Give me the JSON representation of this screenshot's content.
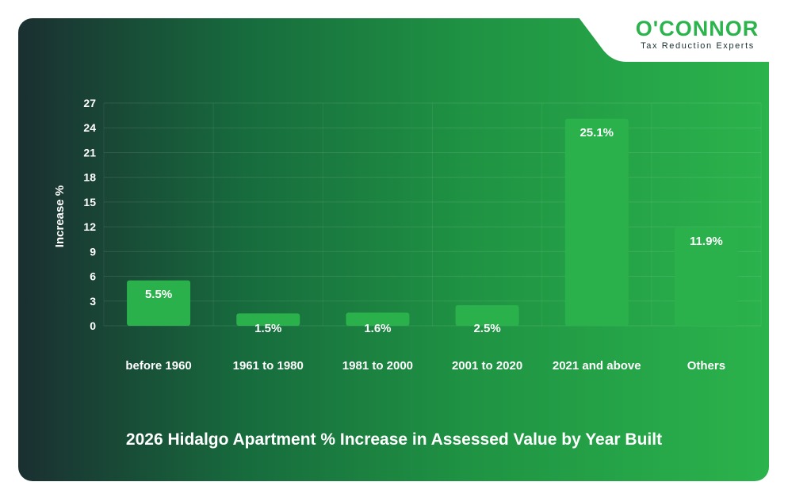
{
  "logo": {
    "name": "O'CONNOR",
    "tagline": "Tax Reduction Experts"
  },
  "colors": {
    "accent": "#2bb34c",
    "bar": "#2ab14b",
    "dark": "#1a2f31"
  },
  "chart_data": {
    "type": "bar",
    "title": "2026 Hidalgo Apartment % Increase in Assessed Value by Year Built",
    "ylabel": "Increase %",
    "xlabel": "",
    "categories": [
      "before 1960",
      "1961 to 1980",
      "1981 to 2000",
      "2001 to 2020",
      "2021 and above",
      "Others"
    ],
    "values": [
      5.5,
      1.5,
      1.6,
      2.5,
      25.1,
      11.9
    ],
    "data_labels": [
      "5.5%",
      "1.5%",
      "1.6%",
      "2.5%",
      "25.1%",
      "11.9%"
    ],
    "ylim": [
      0,
      27
    ],
    "yticks": [
      0,
      3,
      6,
      9,
      12,
      15,
      18,
      21,
      24,
      27
    ],
    "grid": true,
    "legend": "none"
  }
}
